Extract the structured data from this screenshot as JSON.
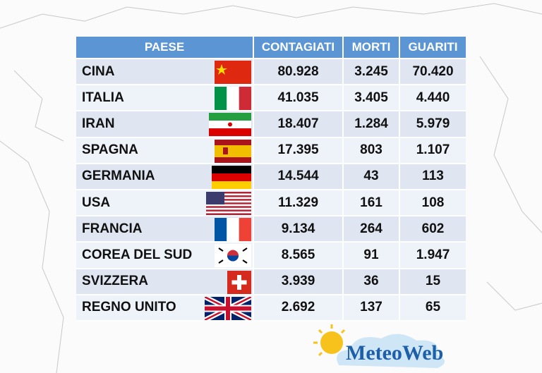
{
  "table": {
    "header": [
      "PAESE",
      "CONTAGIATI",
      "MORTI",
      "GUARITI"
    ],
    "rows": [
      [
        "CINA",
        "80.928",
        "3.245",
        "70.420"
      ],
      [
        "ITALIA",
        "41.035",
        "3.405",
        "4.440"
      ],
      [
        "IRAN",
        "18.407",
        "1.284",
        "5.979"
      ],
      [
        "SPAGNA",
        "17.395",
        "803",
        "1.107"
      ],
      [
        "GERMANIA",
        "14.544",
        "43",
        "113"
      ],
      [
        "USA",
        "11.329",
        "161",
        "108"
      ],
      [
        "FRANCIA",
        "9.134",
        "264",
        "602"
      ],
      [
        "COREA DEL SUD",
        "8.565",
        "91",
        "1.947"
      ],
      [
        "SVIZZERA",
        "3.939",
        "36",
        "15"
      ],
      [
        "REGNO UNITO",
        "2.692",
        "137",
        "65"
      ]
    ]
  },
  "logo": {
    "text": "MeteoWeb"
  }
}
